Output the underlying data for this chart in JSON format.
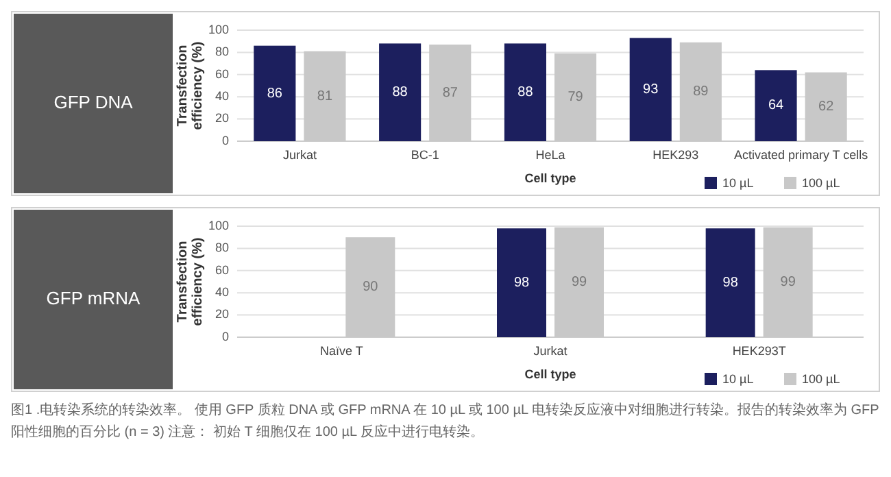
{
  "chart_data": [
    {
      "type": "bar",
      "title": "GFP DNA",
      "xlabel": "Cell type",
      "ylabel": "Transfection efficiency (%)",
      "categories": [
        "Jurkat",
        "BC-1",
        "HeLa",
        "HEK293",
        "Activated primary T cells"
      ],
      "series": [
        {
          "name": "10 µL",
          "color": "#1c1f5e",
          "values": [
            86,
            88,
            88,
            93,
            64
          ]
        },
        {
          "name": "100 µL",
          "color": "#c8c8c8",
          "values": [
            81,
            87,
            79,
            89,
            62
          ]
        }
      ],
      "ylim": [
        0,
        100
      ],
      "yticks": [
        0,
        20,
        40,
        60,
        80,
        100
      ],
      "grid": "y",
      "legend": "bottom right",
      "data_labels": true
    },
    {
      "type": "bar",
      "title": "GFP mRNA",
      "xlabel": "Cell type",
      "ylabel": "Transfection efficiency (%)",
      "categories": [
        "Naïve T",
        "Jurkat",
        "HEK293T"
      ],
      "series": [
        {
          "name": "10 µL",
          "color": "#1c1f5e",
          "values": [
            null,
            98,
            98
          ]
        },
        {
          "name": "100 µL",
          "color": "#c8c8c8",
          "values": [
            90,
            99,
            99
          ]
        }
      ],
      "ylim": [
        0,
        100
      ],
      "yticks": [
        0,
        20,
        40,
        60,
        80,
        100
      ],
      "grid": "y",
      "legend": "bottom right",
      "data_labels": true,
      "annotations": [
        "图1 .电转染系统的转染效率。 使用 GFP 质粒 DNA 或 GFP mRNA 在 10 µL 或 100 µL 电转染反应液中对细胞进行转染。报告的转染效率为 GFP 阳性细胞的百分比 (n = 3) 注意： 初始 T 细胞仅在 100 µL 反应中进行电转染。"
      ]
    }
  ]
}
